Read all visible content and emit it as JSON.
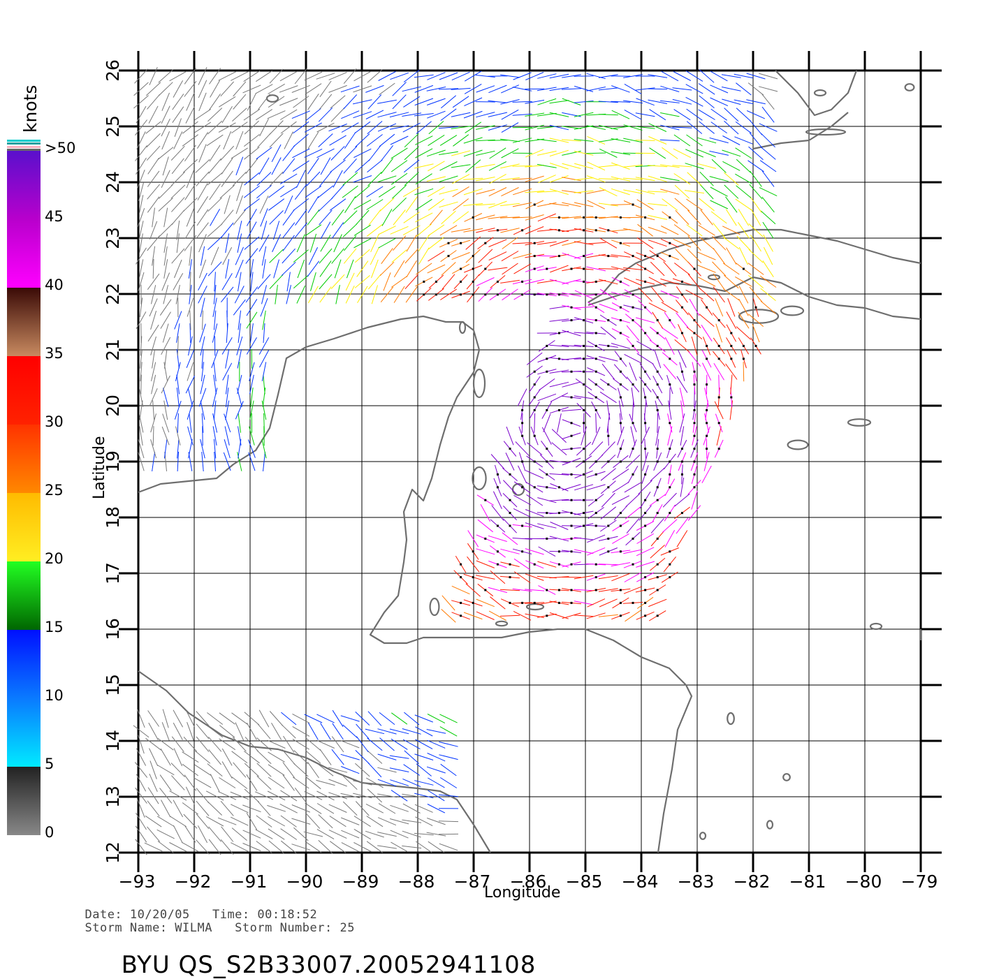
{
  "legend": {
    "title": "knots",
    "labels": [
      ">50",
      "45",
      "40",
      "35",
      "30",
      "25",
      "20",
      "15",
      "10",
      "5",
      "0"
    ],
    "colors": {
      "gray": "#777777",
      "cyan": "#00e6ff",
      "blue": "#0033ff",
      "green": "#00cc00",
      "yellow": "#ffee00",
      "orange": "#ff7a00",
      "red": "#ff1a00",
      "brown": "#7a2a10",
      "magenta": "#ff00ff",
      "purple": "#7a00cc"
    }
  },
  "map": {
    "lon_range": [
      -93,
      -79
    ],
    "lat_range": [
      12,
      26
    ],
    "lon_ticks": [
      "−93",
      "−92",
      "−91",
      "−90",
      "−89",
      "−88",
      "−87",
      "−86",
      "−85",
      "−84",
      "−83",
      "−82",
      "−81",
      "−80",
      "−79"
    ],
    "lat_ticks": [
      "12",
      "13",
      "14",
      "15",
      "16",
      "17",
      "18",
      "19",
      "20",
      "21",
      "22",
      "23",
      "24",
      "25",
      "26"
    ],
    "xlabel": "Longitude",
    "ylabel": "Latitude",
    "coast_color": "#6e6e6e",
    "grid": true
  },
  "footer": {
    "line1": "Date: 10/20/05   Time: 00:18:52",
    "line2": "Storm Name: WILMA   Storm Number: 25",
    "product": "BYU QS_S2B33007.20052941108"
  }
}
